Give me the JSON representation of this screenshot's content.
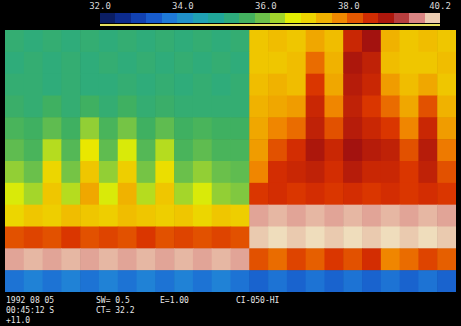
{
  "chart_data": {
    "type": "heatmap",
    "tick_labels": false,
    "cells": [
      [
        35.3,
        35.2,
        35.3,
        35.2,
        35.3,
        35.2,
        35.3,
        35.2,
        35.3,
        35.2,
        35.3,
        35.2,
        35.3,
        37.2,
        37.3,
        37.2,
        37.5,
        37.3,
        38.6,
        39.0,
        37.4,
        37.2,
        37.3,
        37.2
      ],
      [
        35.2,
        35.3,
        35.2,
        35.3,
        35.2,
        35.3,
        35.2,
        35.3,
        35.2,
        35.3,
        35.2,
        35.3,
        35.2,
        37.2,
        37.2,
        37.3,
        38.0,
        37.4,
        38.9,
        38.7,
        37.3,
        37.2,
        37.2,
        37.3
      ],
      [
        35.3,
        35.3,
        35.2,
        35.3,
        35.2,
        35.2,
        35.3,
        35.2,
        35.3,
        35.2,
        35.3,
        35.2,
        35.3,
        37.3,
        37.4,
        37.3,
        38.4,
        37.5,
        38.8,
        38.6,
        37.6,
        37.3,
        37.5,
        37.2
      ],
      [
        35.4,
        35.3,
        35.5,
        35.3,
        35.5,
        35.3,
        35.5,
        35.3,
        35.4,
        35.3,
        35.3,
        35.3,
        35.3,
        37.4,
        37.5,
        37.6,
        38.6,
        37.8,
        38.7,
        38.4,
        38.0,
        37.5,
        38.2,
        37.4
      ],
      [
        35.6,
        35.5,
        35.8,
        35.5,
        36.2,
        35.6,
        36.0,
        35.5,
        35.8,
        35.5,
        35.6,
        35.5,
        35.5,
        37.5,
        37.8,
        38.0,
        38.7,
        38.2,
        38.8,
        38.6,
        38.4,
        37.8,
        38.6,
        37.6
      ],
      [
        35.8,
        35.6,
        36.4,
        35.7,
        36.8,
        35.8,
        36.6,
        35.7,
        36.4,
        35.6,
        35.8,
        35.6,
        35.6,
        37.6,
        38.2,
        38.5,
        38.9,
        38.6,
        39.0,
        38.8,
        38.7,
        38.2,
        38.8,
        37.9
      ],
      [
        36.2,
        35.9,
        37.0,
        36.0,
        37.2,
        36.2,
        37.1,
        36.0,
        36.9,
        35.9,
        36.2,
        35.9,
        35.8,
        37.8,
        38.5,
        38.6,
        38.7,
        38.5,
        38.8,
        38.6,
        38.6,
        38.4,
        38.7,
        38.2
      ],
      [
        36.6,
        36.3,
        37.2,
        36.4,
        37.5,
        36.6,
        37.4,
        36.4,
        37.2,
        36.3,
        36.6,
        36.2,
        36.1,
        38.4,
        38.5,
        38.4,
        38.5,
        38.4,
        38.5,
        38.4,
        38.5,
        38.4,
        38.5,
        38.4
      ],
      [
        37.0,
        37.2,
        37.1,
        37.3,
        37.2,
        37.1,
        37.3,
        37.2,
        37.1,
        37.2,
        37.0,
        37.2,
        37.1,
        39.8,
        39.9,
        39.8,
        39.9,
        39.8,
        39.9,
        39.8,
        39.9,
        39.8,
        39.9,
        39.8
      ],
      [
        38.2,
        38.3,
        38.2,
        38.4,
        38.2,
        38.3,
        38.2,
        38.4,
        38.2,
        38.3,
        38.2,
        38.3,
        38.2,
        40.0,
        40.1,
        40.0,
        40.1,
        40.0,
        40.1,
        40.0,
        40.1,
        40.0,
        40.1,
        40.0
      ],
      [
        39.8,
        39.9,
        39.8,
        39.9,
        39.8,
        39.9,
        39.8,
        39.9,
        39.8,
        39.9,
        39.8,
        39.9,
        39.8,
        38.2,
        38.0,
        38.3,
        38.1,
        38.4,
        38.2,
        38.5,
        37.8,
        38.0,
        38.3,
        38.1
      ],
      [
        33.6,
        33.8,
        33.6,
        33.8,
        33.6,
        33.8,
        33.6,
        33.8,
        33.6,
        33.8,
        33.6,
        33.8,
        33.6,
        33.4,
        33.6,
        33.4,
        33.6,
        33.4,
        33.6,
        33.4,
        33.6,
        33.4,
        33.6,
        33.4
      ]
    ],
    "colorbar": {
      "range": [
        32.0,
        40.2
      ],
      "ticks": [
        {
          "value": 32,
          "label": "32.0"
        },
        {
          "value": 34,
          "label": "34.0"
        },
        {
          "value": 36,
          "label": "36.0"
        },
        {
          "value": 38,
          "label": "38.0"
        },
        40.2
      ]
    },
    "annotations": [
      "1992 08 05",
      "SW= 0.5",
      "E=1.00",
      "CI-050-HI",
      "00:45:12 S",
      "CT= 32.2",
      "+11.0"
    ]
  }
}
